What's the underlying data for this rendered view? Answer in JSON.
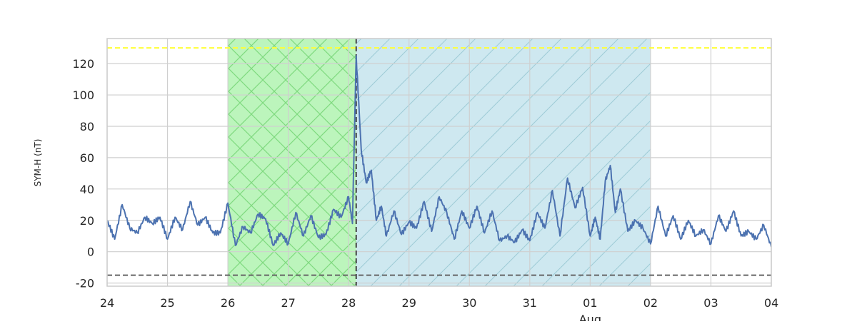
{
  "chart_data": {
    "type": "line",
    "title": "",
    "ylabel": "SYM-H (nT)",
    "xlabel": "",
    "x_range": [
      "2025-07-24T00:00",
      "2025-08-04T00:00"
    ],
    "ylim": [
      -22,
      136
    ],
    "grid": true,
    "y_ticks": [
      -20,
      0,
      20,
      40,
      60,
      80,
      100,
      120
    ],
    "x_ticks": [
      {
        "date": "2025-07-24",
        "label": "24"
      },
      {
        "date": "2025-07-25",
        "label": "25"
      },
      {
        "date": "2025-07-26",
        "label": "26"
      },
      {
        "date": "2025-07-27",
        "label": "27"
      },
      {
        "date": "2025-07-28",
        "label": "28"
      },
      {
        "date": "2025-07-29",
        "label": "29"
      },
      {
        "date": "2025-07-30",
        "label": "30"
      },
      {
        "date": "2025-07-31",
        "label": "31"
      },
      {
        "date": "2025-08-01",
        "label": "01"
      },
      {
        "date": "2025-08-02",
        "label": "02"
      },
      {
        "date": "2025-08-03",
        "label": "03"
      },
      {
        "date": "2025-08-04",
        "label": "04"
      }
    ],
    "month_label": {
      "date": "2025-08-01",
      "text": "Aug"
    },
    "reference_lines": [
      {
        "y": 130,
        "style": "dashed",
        "color": "#ffff33"
      },
      {
        "y": -15,
        "style": "dashed",
        "color": "#666666"
      }
    ],
    "event_line": {
      "date": "2025-07-28T03:00",
      "style": "dashed",
      "color": "#444444"
    },
    "shaded_regions": [
      {
        "start": "2025-07-26T00:00",
        "end": "2025-07-28T03:00",
        "color": "#90ee90",
        "hatch": "cross"
      },
      {
        "start": "2025-07-28T03:00",
        "end": "2025-08-02T00:00",
        "color": "#add8e6",
        "hatch": "diagonal"
      }
    ],
    "series": [
      {
        "color": "#4c72b0",
        "points": [
          [
            "2025-07-24T00:00",
            20
          ],
          [
            "2025-07-24T03:00",
            8
          ],
          [
            "2025-07-24T06:00",
            30
          ],
          [
            "2025-07-24T09:00",
            15
          ],
          [
            "2025-07-24T12:00",
            12
          ],
          [
            "2025-07-24T15:00",
            22
          ],
          [
            "2025-07-24T18:00",
            18
          ],
          [
            "2025-07-24T21:00",
            22
          ],
          [
            "2025-07-25T00:00",
            8
          ],
          [
            "2025-07-25T03:00",
            22
          ],
          [
            "2025-07-25T06:00",
            14
          ],
          [
            "2025-07-25T09:00",
            32
          ],
          [
            "2025-07-25T12:00",
            17
          ],
          [
            "2025-07-25T15:00",
            22
          ],
          [
            "2025-07-25T18:00",
            12
          ],
          [
            "2025-07-25T21:00",
            12
          ],
          [
            "2025-07-26T00:00",
            31
          ],
          [
            "2025-07-26T03:00",
            4
          ],
          [
            "2025-07-26T06:00",
            16
          ],
          [
            "2025-07-26T09:00",
            12
          ],
          [
            "2025-07-26T12:00",
            24
          ],
          [
            "2025-07-26T15:00",
            21
          ],
          [
            "2025-07-26T18:00",
            4
          ],
          [
            "2025-07-26T21:00",
            12
          ],
          [
            "2025-07-27T00:00",
            5
          ],
          [
            "2025-07-27T03:00",
            25
          ],
          [
            "2025-07-27T06:00",
            10
          ],
          [
            "2025-07-27T09:00",
            23
          ],
          [
            "2025-07-27T12:00",
            9
          ],
          [
            "2025-07-27T15:00",
            11
          ],
          [
            "2025-07-27T18:00",
            27
          ],
          [
            "2025-07-27T21:00",
            22
          ],
          [
            "2025-07-28T00:00",
            35
          ],
          [
            "2025-07-28T01:30",
            18
          ],
          [
            "2025-07-28T03:00",
            125
          ],
          [
            "2025-07-28T05:00",
            65
          ],
          [
            "2025-07-28T07:00",
            44
          ],
          [
            "2025-07-28T09:00",
            52
          ],
          [
            "2025-07-28T11:00",
            20
          ],
          [
            "2025-07-28T13:00",
            29
          ],
          [
            "2025-07-28T15:00",
            10
          ],
          [
            "2025-07-28T18:00",
            26
          ],
          [
            "2025-07-28T21:00",
            11
          ],
          [
            "2025-07-29T00:00",
            19
          ],
          [
            "2025-07-29T03:00",
            15
          ],
          [
            "2025-07-29T06:00",
            32
          ],
          [
            "2025-07-29T09:00",
            13
          ],
          [
            "2025-07-29T12:00",
            35
          ],
          [
            "2025-07-29T15:00",
            25
          ],
          [
            "2025-07-29T18:00",
            8
          ],
          [
            "2025-07-29T21:00",
            26
          ],
          [
            "2025-07-30T00:00",
            15
          ],
          [
            "2025-07-30T03:00",
            29
          ],
          [
            "2025-07-30T06:00",
            12
          ],
          [
            "2025-07-30T09:00",
            26
          ],
          [
            "2025-07-30T12:00",
            7
          ],
          [
            "2025-07-30T15:00",
            10
          ],
          [
            "2025-07-30T18:00",
            6
          ],
          [
            "2025-07-30T21:00",
            14
          ],
          [
            "2025-07-31T00:00",
            7
          ],
          [
            "2025-07-31T03:00",
            25
          ],
          [
            "2025-07-31T06:00",
            15
          ],
          [
            "2025-07-31T09:00",
            39
          ],
          [
            "2025-07-31T12:00",
            10
          ],
          [
            "2025-07-31T15:00",
            47
          ],
          [
            "2025-07-31T18:00",
            28
          ],
          [
            "2025-07-31T21:00",
            41
          ],
          [
            "2025-08-01T00:00",
            10
          ],
          [
            "2025-08-01T02:00",
            22
          ],
          [
            "2025-08-01T04:00",
            8
          ],
          [
            "2025-08-01T06:00",
            45
          ],
          [
            "2025-08-01T08:00",
            55
          ],
          [
            "2025-08-01T10:00",
            25
          ],
          [
            "2025-08-01T12:00",
            40
          ],
          [
            "2025-08-01T15:00",
            13
          ],
          [
            "2025-08-01T18:00",
            20
          ],
          [
            "2025-08-01T21:00",
            15
          ],
          [
            "2025-08-02T00:00",
            5
          ],
          [
            "2025-08-02T03:00",
            29
          ],
          [
            "2025-08-02T06:00",
            10
          ],
          [
            "2025-08-02T09:00",
            23
          ],
          [
            "2025-08-02T12:00",
            8
          ],
          [
            "2025-08-02T15:00",
            20
          ],
          [
            "2025-08-02T18:00",
            10
          ],
          [
            "2025-08-02T21:00",
            14
          ],
          [
            "2025-08-03T00:00",
            5
          ],
          [
            "2025-08-03T03:00",
            23
          ],
          [
            "2025-08-03T06:00",
            13
          ],
          [
            "2025-08-03T09:00",
            26
          ],
          [
            "2025-08-03T12:00",
            10
          ],
          [
            "2025-08-03T15:00",
            13
          ],
          [
            "2025-08-03T18:00",
            8
          ],
          [
            "2025-08-03T21:00",
            17
          ],
          [
            "2025-08-04T00:00",
            3
          ]
        ]
      }
    ]
  }
}
